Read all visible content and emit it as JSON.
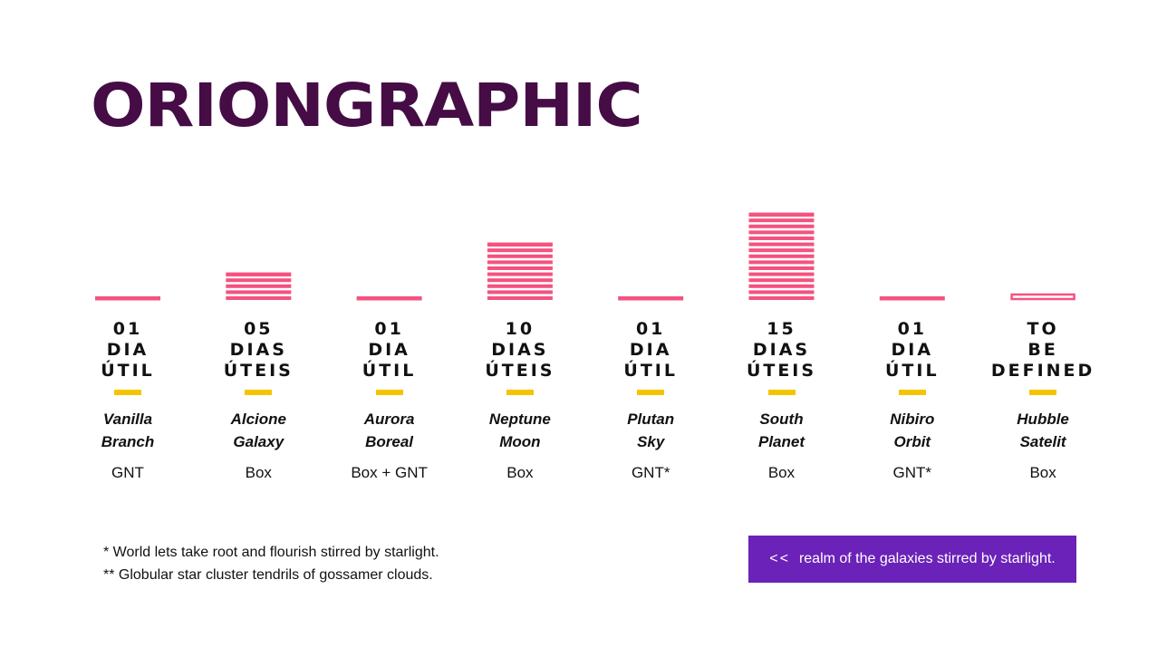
{
  "header": {
    "title": "ORIONGRAPHIC"
  },
  "colors": {
    "bar": "#f5527f",
    "accent": "#f5c400",
    "title": "#450c45",
    "button": "#6a22b8"
  },
  "chart_data": {
    "type": "bar",
    "categories": [
      "Vanilla Branch",
      "Alcione Galaxy",
      "Aurora Boreal",
      "Neptune Moon",
      "Plutan Sky",
      "South Planet",
      "Nibiro Orbit",
      "Hubble Satelit"
    ],
    "values": [
      1,
      5,
      1,
      10,
      1,
      15,
      1,
      null
    ],
    "title": "",
    "xlabel": "",
    "ylabel": "",
    "ylim": [
      0,
      15
    ],
    "grid": false
  },
  "columns": [
    {
      "days": [
        "01",
        "DIA",
        "ÚTIL"
      ],
      "name": [
        "Vanilla",
        "Branch"
      ],
      "type": "GNT"
    },
    {
      "days": [
        "05",
        "DIAS",
        "ÚTEIS"
      ],
      "name": [
        "Alcione",
        "Galaxy"
      ],
      "type": "Box"
    },
    {
      "days": [
        "01",
        "DIA",
        "ÚTIL"
      ],
      "name": [
        "Aurora",
        "Boreal"
      ],
      "type": "Box + GNT"
    },
    {
      "days": [
        "10",
        "DIAS",
        "ÚTEIS"
      ],
      "name": [
        "Neptune",
        "Moon"
      ],
      "type": "Box"
    },
    {
      "days": [
        "01",
        "DIA",
        "ÚTIL"
      ],
      "name": [
        "Plutan",
        "Sky"
      ],
      "type": "GNT*"
    },
    {
      "days": [
        "15",
        "DIAS",
        "ÚTEIS"
      ],
      "name": [
        "South",
        "Planet"
      ],
      "type": "Box"
    },
    {
      "days": [
        "01",
        "DIA",
        "ÚTIL"
      ],
      "name": [
        "Nibiro",
        "Orbit"
      ],
      "type": "GNT*"
    },
    {
      "days": [
        "TO",
        "BE",
        "DEFINED"
      ],
      "name": [
        "Hubble",
        "Satelit"
      ],
      "type": "Box"
    }
  ],
  "footnotes": [
    "* World lets take root and flourish stirred by starlight.",
    "** Globular star cluster tendrils of gossamer clouds."
  ],
  "cta": {
    "arrow": "<<",
    "label": "realm of the galaxies stirred by starlight."
  }
}
